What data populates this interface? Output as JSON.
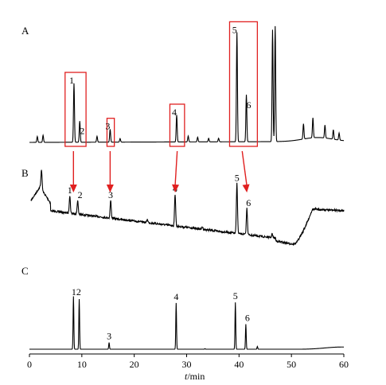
{
  "chart_data": {
    "type": "line",
    "xlabel_prefix": "t",
    "xlabel_suffix": "/min",
    "xlim": [
      0,
      60
    ],
    "xticks": [
      0,
      10,
      20,
      30,
      40,
      50,
      60
    ],
    "panels": [
      {
        "letter": "A",
        "peaks": [
          {
            "label": "1",
            "t": 8.5,
            "h": 0.5
          },
          {
            "label": "2",
            "t": 9.6,
            "h": 0.18
          },
          {
            "label": "3",
            "t": 15.4,
            "h": 0.11
          },
          {
            "label": "4",
            "t": 28.1,
            "h": 0.23
          },
          {
            "label": "5",
            "t": 39.6,
            "h": 0.93
          },
          {
            "label": "6",
            "t": 41.4,
            "h": 0.4
          }
        ],
        "other_peaks": [
          {
            "t": 1.5,
            "h": 0.05
          },
          {
            "t": 2.6,
            "h": 0.06
          },
          {
            "t": 12.9,
            "h": 0.05
          },
          {
            "t": 17.3,
            "h": 0.03
          },
          {
            "t": 30.3,
            "h": 0.05
          },
          {
            "t": 32.1,
            "h": 0.04
          },
          {
            "t": 34.2,
            "h": 0.03
          },
          {
            "t": 36.1,
            "h": 0.03
          },
          {
            "t": 46.4,
            "h": 0.95
          },
          {
            "t": 46.9,
            "h": 0.98
          },
          {
            "t": 52.3,
            "h": 0.13
          },
          {
            "t": 54.1,
            "h": 0.17
          },
          {
            "t": 56.4,
            "h": 0.11
          },
          {
            "t": 58.0,
            "h": 0.08
          },
          {
            "t": 59.1,
            "h": 0.06
          }
        ],
        "boxes": [
          {
            "t0": 6.8,
            "t1": 10.8,
            "label": "1"
          },
          {
            "t0": 14.8,
            "t1": 16.2,
            "label": "3"
          },
          {
            "t0": 26.8,
            "t1": 29.6,
            "label": "4"
          },
          {
            "t0": 38.2,
            "t1": 43.5,
            "label": "5"
          }
        ]
      },
      {
        "letter": "B",
        "peaks": [
          {
            "label": "1",
            "t": 7.7,
            "h": 0.22
          },
          {
            "label": "2",
            "t": 9.2,
            "h": 0.17
          },
          {
            "label": "3",
            "t": 15.5,
            "h": 0.22
          },
          {
            "label": "4",
            "t": 27.8,
            "h": 0.4
          },
          {
            "label": "5",
            "t": 39.6,
            "h": 0.63
          },
          {
            "label": "6",
            "t": 41.5,
            "h": 0.33
          }
        ],
        "arrows": [
          {
            "from_t": 8.4,
            "to_t": 8.4
          },
          {
            "from_t": 15.4,
            "to_t": 15.4
          },
          {
            "from_t": 28.2,
            "to_t": 27.8
          },
          {
            "from_t": 40.6,
            "to_t": 41.5
          }
        ]
      },
      {
        "letter": "C",
        "peaks": [
          {
            "label": "1",
            "t": 8.4,
            "h": 0.95
          },
          {
            "label": "2",
            "t": 9.5,
            "h": 0.9
          },
          {
            "label": "3",
            "t": 15.2,
            "h": 0.12
          },
          {
            "label": "4",
            "t": 28.0,
            "h": 0.83
          },
          {
            "label": "5",
            "t": 39.3,
            "h": 0.84
          },
          {
            "label": "6",
            "t": 41.3,
            "h": 0.45
          }
        ],
        "combined_label": "12"
      }
    ]
  }
}
